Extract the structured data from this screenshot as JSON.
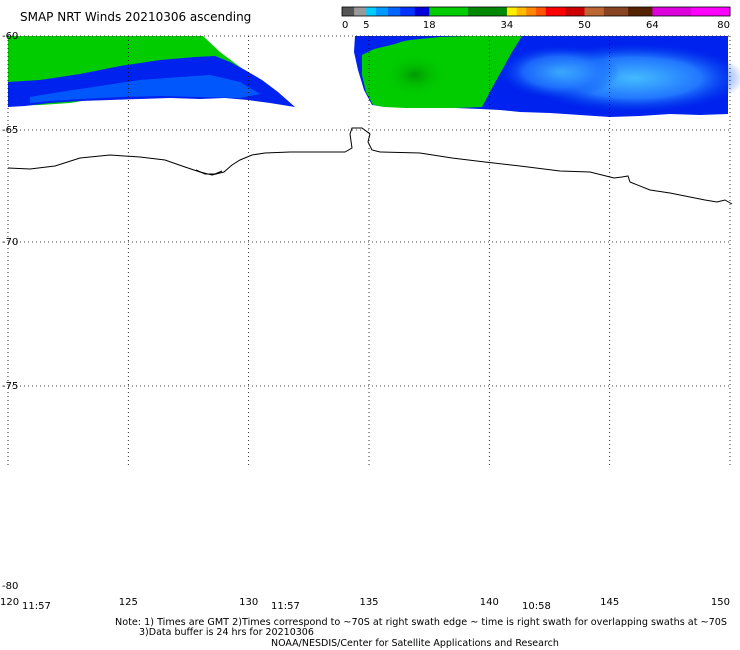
{
  "title": "SMAP NRT Winds 20210306 ascending",
  "colorbar": {
    "labels": [
      "0",
      "5",
      "18",
      "34",
      "50",
      "64",
      "80"
    ],
    "label_values": [
      0,
      5,
      18,
      34,
      50,
      64,
      80
    ],
    "segments": [
      {
        "from": 0,
        "to": 2.5,
        "color": "#555555"
      },
      {
        "from": 2.5,
        "to": 5,
        "color": "#9a9a9a"
      },
      {
        "from": 5,
        "to": 7,
        "color": "#00ccff"
      },
      {
        "from": 7,
        "to": 9.5,
        "color": "#0099ff"
      },
      {
        "from": 9.5,
        "to": 12,
        "color": "#0066ff"
      },
      {
        "from": 12,
        "to": 15,
        "color": "#0033ff"
      },
      {
        "from": 15,
        "to": 18,
        "color": "#0000dd"
      },
      {
        "from": 18,
        "to": 26,
        "color": "#00cc00"
      },
      {
        "from": 26,
        "to": 34,
        "color": "#008800"
      },
      {
        "from": 34,
        "to": 36,
        "color": "#ffee00"
      },
      {
        "from": 36,
        "to": 38,
        "color": "#ffbb00"
      },
      {
        "from": 38,
        "to": 40,
        "color": "#ff8800"
      },
      {
        "from": 40,
        "to": 42,
        "color": "#ff5500"
      },
      {
        "from": 42,
        "to": 46,
        "color": "#ff0000"
      },
      {
        "from": 46,
        "to": 50,
        "color": "#cc0000"
      },
      {
        "from": 50,
        "to": 54,
        "color": "#bb6633"
      },
      {
        "from": 54,
        "to": 59,
        "color": "#884422"
      },
      {
        "from": 59,
        "to": 64,
        "color": "#552200"
      },
      {
        "from": 64,
        "to": 72,
        "color": "#dd00dd"
      },
      {
        "from": 72,
        "to": 80,
        "color": "#ff00ff"
      }
    ]
  },
  "map": {
    "lon_range": [
      120,
      150
    ],
    "lat_range": [
      -60,
      -80
    ],
    "lon_ticks": [
      120,
      125,
      130,
      135,
      140,
      145,
      150
    ],
    "lon_tick_labels": [
      "120",
      "125",
      "130",
      "135",
      "140",
      "145",
      "150"
    ],
    "lat_ticks": [
      -60,
      -65,
      -70,
      -75,
      -80
    ],
    "lat_tick_labels": [
      "-60",
      "-65",
      "-70",
      "-75",
      "-80"
    ],
    "grid": true
  },
  "swath_times": [
    "11:57",
    "11:57",
    "10:58"
  ],
  "notes": [
    "Note: 1) Times are GMT 2)Times correspond to ~70S at right swath edge ~ time is right swath for overlapping swaths at ~70S",
    "3)Data buffer is 24 hrs for 20210306",
    "NOAA/NESDIS/Center for Satellite Applications and Research"
  ],
  "colors": {
    "wind_green": "#00cc00",
    "wind_dark_green": "#00aa00",
    "wind_blue": "#0022ee",
    "wind_light_blue": "#0077ff",
    "coastline": "#000000",
    "grid": "#000000"
  }
}
